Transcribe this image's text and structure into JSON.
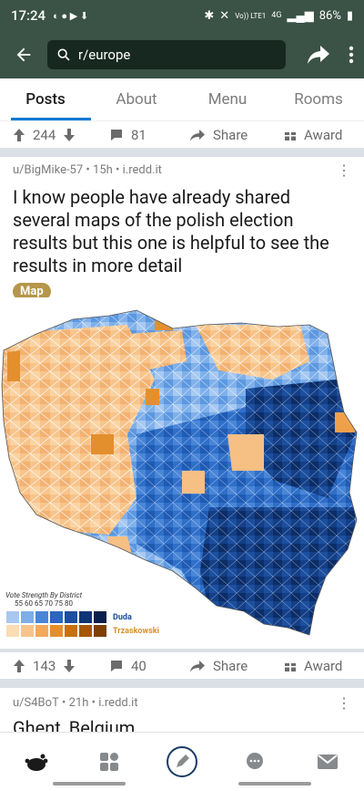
{
  "status_bar": {
    "time": "17:24",
    "battery": "86%",
    "network": "4G",
    "volte": "Vo)) LTE1"
  },
  "header": {
    "search_text": "r/europe"
  },
  "tabs": [
    {
      "label": "Posts"
    },
    {
      "label": "About"
    },
    {
      "label": "Menu"
    },
    {
      "label": "Rooms"
    }
  ],
  "prev_post": {
    "votes": "244",
    "comments": "81",
    "share": "Share",
    "award": "Award"
  },
  "post1": {
    "author": "u/BigMike-57",
    "age": "15h",
    "domain": "i.redd.it",
    "title": "I know people have already shared several maps of the polish election results but this one is helpful to see the results in more detail",
    "flair": "Map",
    "votes": "143",
    "comments": "40",
    "share": "Share",
    "award": "Award"
  },
  "map": {
    "legend_title": "Vote Strength By District",
    "legend_ticks": [
      "55",
      "60",
      "65",
      "70",
      "75",
      "80"
    ],
    "candidate_a": "Duda",
    "candidate_b": "Trzaskowski",
    "color_a": "#1b4fa0",
    "color_b": "#f0b46c"
  },
  "post2": {
    "author": "u/S4BoT",
    "age": "21h",
    "domain": "i.redd.it",
    "title": "Ghent, Belgium"
  },
  "colors": {
    "header_bg": "#3b5246",
    "accent": "#0079d3",
    "flair_bg": "#b5964a"
  },
  "bottom_nav": [
    "home-icon",
    "communities-icon",
    "create-post-icon",
    "chat-icon",
    "inbox-icon"
  ]
}
